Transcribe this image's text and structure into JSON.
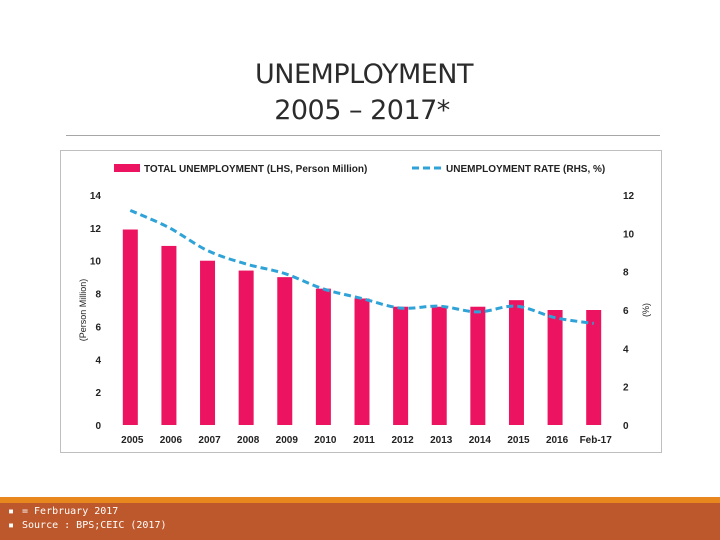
{
  "slide": {
    "title_line1": "UNEMPLOYMENT",
    "title_line2": "2005 – 2017*",
    "footnotes": [
      "= Ferbruary 2017",
      "Source : BPS;CEIC (2017)"
    ],
    "bullet_glyph": "▪"
  },
  "colors": {
    "bar": "#ec1460",
    "line": "#2fa3d8",
    "footer": "#bd582c",
    "footer_accent": "#e8871e"
  },
  "chart_data": {
    "type": "bar",
    "categories": [
      "2005",
      "2006",
      "2007",
      "2008",
      "2009",
      "2010",
      "2011",
      "2012",
      "2013",
      "2014",
      "2015",
      "2016",
      "Feb-17"
    ],
    "series": [
      {
        "name": "TOTAL UNEMPLOYMENT (LHS, Person Million)",
        "type": "bar",
        "axis": "left",
        "values": [
          11.9,
          10.9,
          10.0,
          9.4,
          9.0,
          8.3,
          7.7,
          7.2,
          7.2,
          7.2,
          7.6,
          7.0,
          7.0
        ]
      },
      {
        "name": "UNEMPLOYMENT RATE (RHS, %)",
        "type": "line",
        "style": "dashed",
        "axis": "right",
        "values": [
          11.2,
          10.3,
          9.1,
          8.4,
          7.9,
          7.1,
          6.6,
          6.1,
          6.2,
          5.9,
          6.2,
          5.6,
          5.3
        ]
      }
    ],
    "ylabel_left": "(Person Million)",
    "ylabel_right": "(%)",
    "ylim_left": [
      0,
      14
    ],
    "ylim_right": [
      0,
      12
    ],
    "yticks_left": [
      "0",
      "2",
      "4",
      "6",
      "8",
      "10",
      "12",
      "14"
    ],
    "yticks_right": [
      "0",
      "2",
      "4",
      "6",
      "8",
      "10",
      "12"
    ],
    "legend_position": "top",
    "grid": false
  }
}
